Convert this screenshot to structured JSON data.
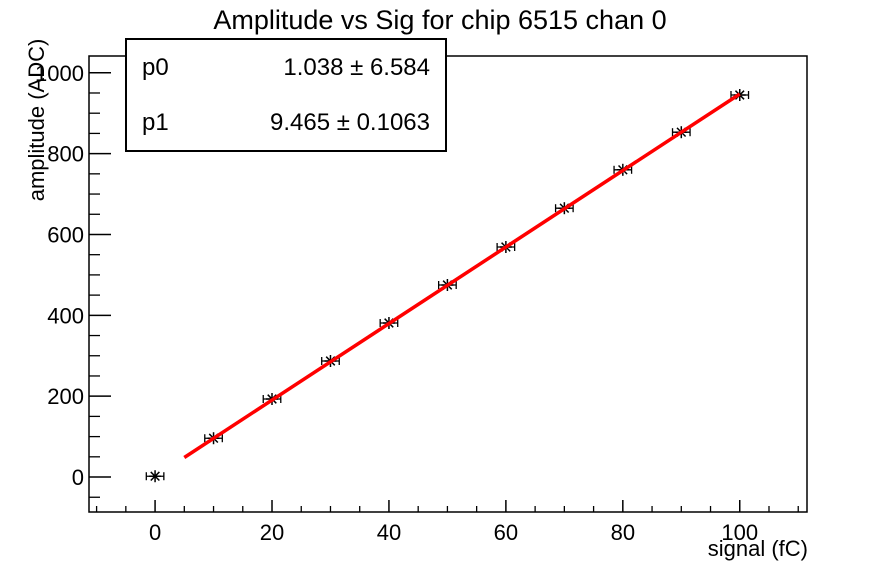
{
  "page": {
    "background": "#ffffff",
    "foreground": "#000000"
  },
  "chart_data": {
    "type": "scatter",
    "title": "Amplitude vs Sig for chip 6515 chan 0",
    "xlabel": "signal (fC)",
    "ylabel": "amplitude (ADC)",
    "xlim": [
      -11.3,
      111.5
    ],
    "ylim": [
      -86.5,
      1041.5
    ],
    "xticks": [
      0,
      20,
      40,
      60,
      80,
      100
    ],
    "yticks": [
      0,
      200,
      400,
      600,
      800,
      1000
    ],
    "x_minor_step": 5,
    "y_minor_step": 50,
    "grid": false,
    "legend": "none",
    "points": {
      "x": [
        0,
        10,
        20,
        30,
        40,
        50,
        60,
        70,
        80,
        90,
        100
      ],
      "y": [
        2,
        96,
        193,
        287,
        381,
        475,
        569,
        665,
        760,
        853,
        945
      ],
      "xerr": 1.5
    },
    "marker": "asterisk",
    "marker_color": "#000000",
    "fit": {
      "type": "linear",
      "p0": 1.038,
      "p1": 9.465,
      "range": [
        5,
        100
      ],
      "color": "#ff0000"
    },
    "stats": {
      "rows": [
        {
          "name": "p0",
          "value": "1.038 ± 6.584"
        },
        {
          "name": "p1",
          "value": "9.465 ± 0.1063"
        }
      ]
    }
  }
}
